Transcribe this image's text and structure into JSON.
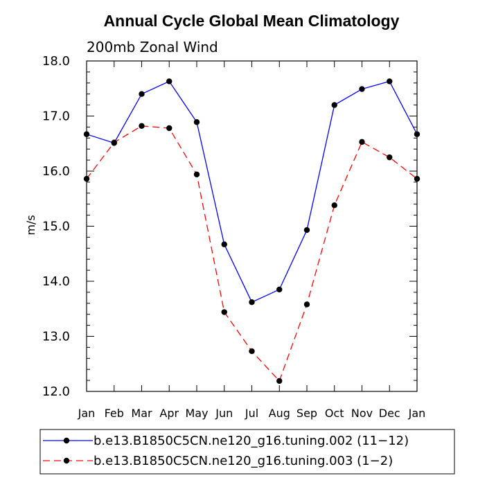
{
  "chart_data": {
    "type": "line",
    "title": "Annual Cycle Global Mean Climatology",
    "subtitle": "200mb Zonal Wind",
    "xlabel": "",
    "ylabel": "m/s",
    "categories": [
      "Jan",
      "Feb",
      "Mar",
      "Apr",
      "May",
      "Jun",
      "Jul",
      "Aug",
      "Sep",
      "Oct",
      "Nov",
      "Dec",
      "Jan"
    ],
    "ylim": [
      12.0,
      18.0
    ],
    "yticks": [
      "12.0",
      "13.0",
      "14.0",
      "15.0",
      "16.0",
      "17.0",
      "18.0"
    ],
    "grid": false,
    "legend_position": "bottom",
    "series": [
      {
        "name": "b.e13.B1850C5CN.ne120_g16.tuning.002 (11−12)",
        "color": "#0000ff",
        "dash": "solid",
        "values": [
          16.67,
          16.51,
          17.4,
          17.63,
          16.89,
          14.67,
          13.62,
          13.85,
          14.93,
          17.2,
          17.49,
          17.63,
          16.67
        ]
      },
      {
        "name": "b.e13.B1850C5CN.ne120_g16.tuning.003 (1−2)",
        "color": "#ff0000",
        "dash": "dashed",
        "values": [
          15.86,
          16.52,
          16.82,
          16.78,
          15.94,
          13.44,
          12.73,
          12.19,
          13.58,
          15.38,
          16.53,
          16.25,
          15.86
        ]
      }
    ]
  }
}
